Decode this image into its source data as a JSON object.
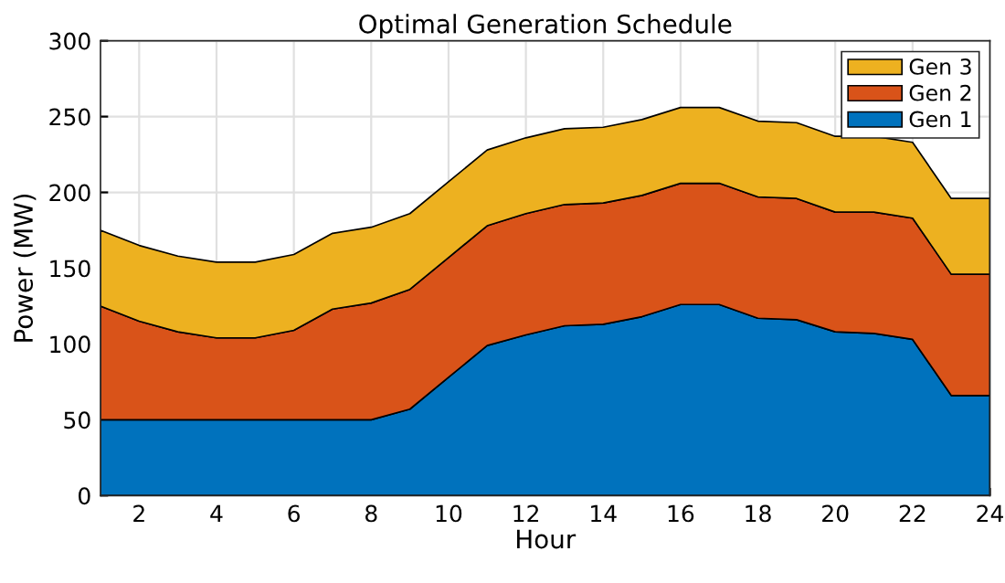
{
  "chart_data": {
    "type": "area",
    "stacked": true,
    "title": "Optimal Generation Schedule",
    "xlabel": "Hour",
    "ylabel": "Power (MW)",
    "x": [
      1,
      2,
      3,
      4,
      5,
      6,
      7,
      8,
      9,
      10,
      11,
      12,
      13,
      14,
      15,
      16,
      17,
      18,
      19,
      20,
      21,
      22,
      23,
      24
    ],
    "series": [
      {
        "name": "Gen 1",
        "color": "#0072bd",
        "values": [
          50,
          50,
          50,
          50,
          50,
          50,
          50,
          50,
          57,
          78,
          99,
          106,
          112,
          113,
          118,
          126,
          126,
          117,
          116,
          108,
          107,
          103,
          66,
          66
        ]
      },
      {
        "name": "Gen 2",
        "color": "#d95319",
        "values": [
          75,
          65,
          58,
          54,
          54,
          59,
          73,
          77,
          79,
          79,
          79,
          80,
          80,
          80,
          80,
          80,
          80,
          80,
          80,
          79,
          80,
          80,
          80,
          80
        ]
      },
      {
        "name": "Gen 3",
        "color": "#edb120",
        "values": [
          50,
          50,
          50,
          50,
          50,
          50,
          50,
          50,
          50,
          50,
          50,
          50,
          50,
          50,
          50,
          50,
          50,
          50,
          50,
          50,
          50,
          50,
          50,
          50
        ]
      }
    ],
    "xlim": [
      1,
      24
    ],
    "xticks": [
      2,
      4,
      6,
      8,
      10,
      12,
      14,
      16,
      18,
      20,
      22,
      24
    ],
    "ylim": [
      0,
      300
    ],
    "yticks": [
      0,
      50,
      100,
      150,
      200,
      250,
      300
    ],
    "grid": true,
    "legend": "top right"
  }
}
